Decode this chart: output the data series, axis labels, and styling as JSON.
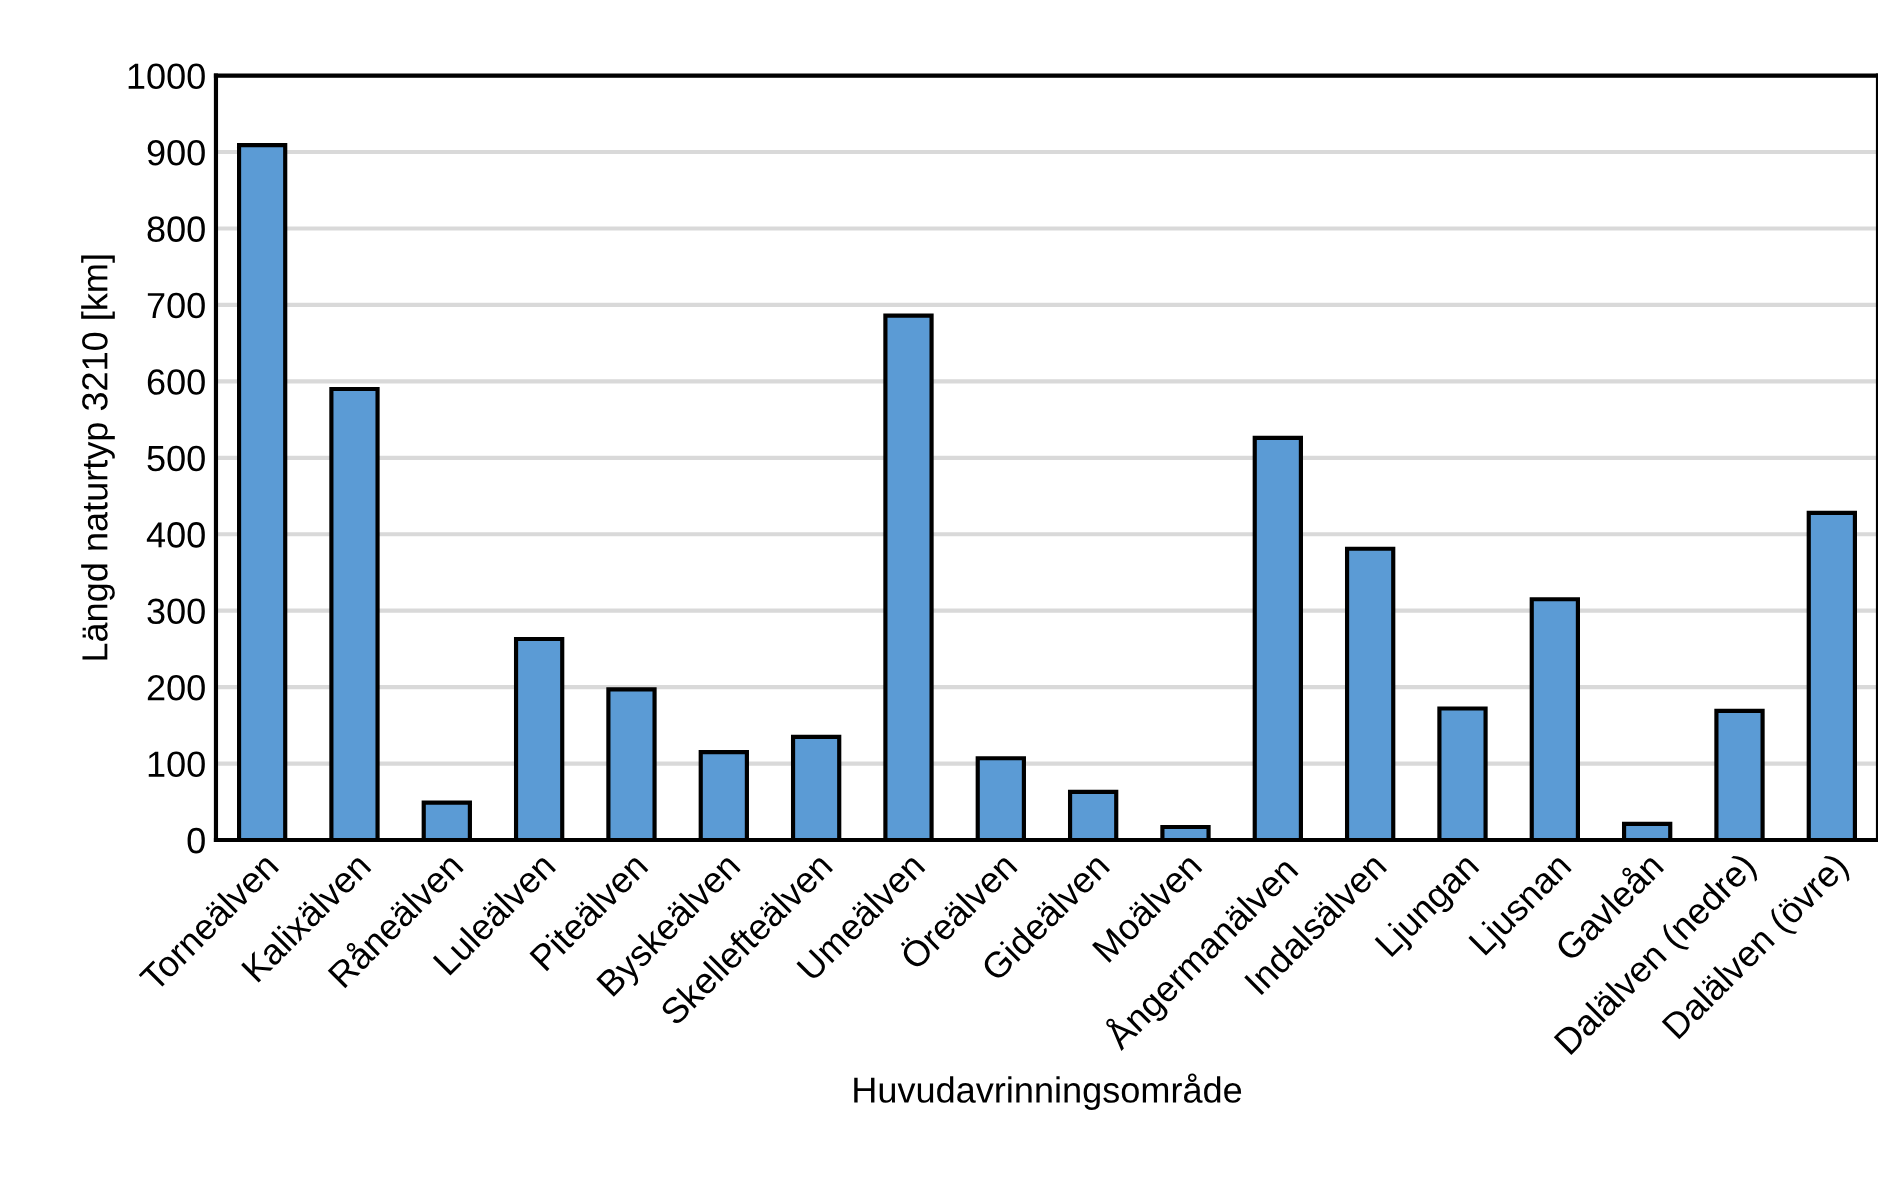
{
  "chart_data": {
    "type": "bar",
    "xlabel": "Huvudavrinningsområde",
    "ylabel": "Längd naturtyp 3210 [km]",
    "categories": [
      "Torneälven",
      "Kalixälven",
      "Råneälven",
      "Luleälven",
      "Piteälven",
      "Byskeälven",
      "Skellefteälven",
      "Umeälven",
      "Öreälven",
      "Gideälven",
      "Moälven",
      "Ångermanälven",
      "Indalsälven",
      "Ljungan",
      "Ljusnan",
      "Gavleån",
      "Dalälven (nedre)",
      "Dalälven (övre)"
    ],
    "values": [
      909,
      590,
      49,
      263,
      197,
      115,
      135,
      686,
      107,
      63,
      17,
      526,
      381,
      172,
      315,
      21,
      169,
      428
    ],
    "color": "#5b9bd5",
    "ylim": [
      0,
      1000
    ],
    "yticks": [
      0,
      100,
      200,
      300,
      400,
      500,
      600,
      700,
      800,
      900,
      1000
    ],
    "grid": "y"
  }
}
